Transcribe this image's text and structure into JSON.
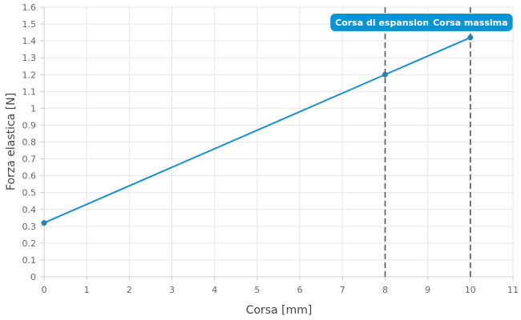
{
  "chart_data": {
    "type": "line",
    "xlabel": "Corsa [mm]",
    "ylabel": "Forza elastica [N]",
    "xlim": [
      0,
      11
    ],
    "ylim": [
      0,
      1.6
    ],
    "x_ticks": [
      0,
      1,
      2,
      3,
      4,
      5,
      6,
      7,
      8,
      9,
      10,
      11
    ],
    "y_ticks": [
      0,
      0.1,
      0.2,
      0.3,
      0.4,
      0.5,
      0.6,
      0.7,
      0.8,
      0.9,
      1,
      1.1,
      1.2,
      1.3,
      1.4,
      1.5,
      1.6
    ],
    "grid": true,
    "series": [
      {
        "color": "#1a8fcf",
        "x": [
          0,
          8,
          10
        ],
        "y": [
          0.32,
          1.2,
          1.42
        ]
      }
    ],
    "annotations": [
      {
        "label": "Corsa di espansione",
        "x": 8,
        "color": "#0a94d6"
      },
      {
        "label": "Corsa massima",
        "x": 10,
        "color": "#0a94d6"
      }
    ]
  }
}
